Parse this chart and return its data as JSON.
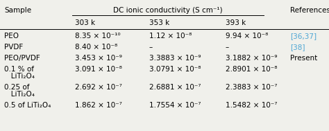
{
  "bg_color": "#f0f0eb",
  "ref_color": "#4da6d4",
  "font_size": 7.5,
  "title": "DC ionic conductivity (S cm⁻¹)",
  "sub_headers": [
    "303 k",
    "353 k",
    "393 k"
  ],
  "rows": [
    {
      "sample": "PEO",
      "v1": "8.35 × 10⁻¹⁰",
      "v2": "1.12 × 10⁻⁸",
      "v3": "9.94 × 10⁻⁸",
      "ref": "[36,37]",
      "ref_colored": true,
      "sample_line2": "",
      "two_line": false
    },
    {
      "sample": "PVDF",
      "v1": "8.40 × 10⁻⁸",
      "v2": "–",
      "v3": "–",
      "ref": "[38]",
      "ref_colored": true,
      "sample_line2": "",
      "two_line": false
    },
    {
      "sample": "PEO/PVDF",
      "v1": "3.453 × 10⁻⁹",
      "v2": "3.3883 × 10⁻⁹",
      "v3": "3.1882 × 10⁻⁹",
      "ref": "Present",
      "ref_colored": false,
      "sample_line2": "",
      "two_line": false
    },
    {
      "sample": "0.1 % of",
      "v1": "3.091 × 10⁻⁸",
      "v2": "3.0791 × 10⁻⁸",
      "v3": "2.8901 × 10⁻⁸",
      "ref": "",
      "ref_colored": false,
      "sample_line2": "   LiTi₂O₄",
      "two_line": true
    },
    {
      "sample": "0.25 of",
      "v1": "2.692 × 10⁻⁷",
      "v2": "2.6881 × 10⁻⁷",
      "v3": "2.3883 × 10⁻⁷",
      "ref": "",
      "ref_colored": false,
      "sample_line2": "   LiTi₂O₄",
      "two_line": true
    },
    {
      "sample": "0.5 of LiTi₂O₄",
      "v1": "1.862 × 10⁻⁷",
      "v2": "1.7554 × 10⁻⁷",
      "v3": "1.5482 × 10⁻⁷",
      "ref": "",
      "ref_colored": false,
      "sample_line2": "",
      "two_line": false
    }
  ]
}
